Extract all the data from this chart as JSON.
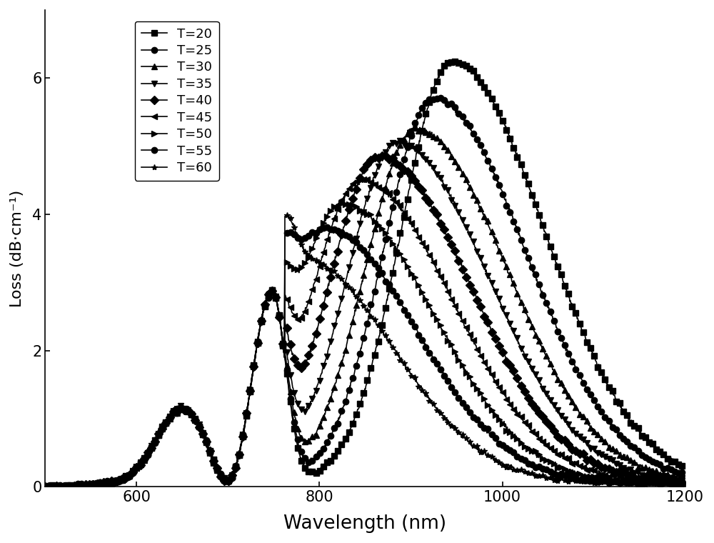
{
  "title": "",
  "xlabel": "Wavelength (nm)",
  "ylabel": "Loss (dB·cm⁻¹)",
  "xlim": [
    500,
    1200
  ],
  "ylim": [
    0,
    7
  ],
  "yticks": [
    0,
    2,
    4,
    6
  ],
  "xticks": [
    600,
    800,
    1000,
    1200
  ],
  "series": [
    {
      "label": "T=20",
      "marker": "s",
      "peak_wl": 945,
      "peak_val": 6.2
    },
    {
      "label": "T=25",
      "marker": "o",
      "peak_wl": 925,
      "peak_val": 5.65
    },
    {
      "label": "T=30",
      "marker": "^",
      "peak_wl": 905,
      "peak_val": 5.2
    },
    {
      "label": "T=35",
      "marker": "v",
      "peak_wl": 885,
      "peak_val": 5.0
    },
    {
      "label": "T=40",
      "marker": "D",
      "peak_wl": 865,
      "peak_val": 4.8
    },
    {
      "label": "T=45",
      "marker": "<",
      "peak_wl": 845,
      "peak_val": 4.45
    },
    {
      "label": "T=50",
      "marker": ">",
      "peak_wl": 825,
      "peak_val": 4.1
    },
    {
      "label": "T=55",
      "marker": "o",
      "peak_wl": 805,
      "peak_val": 3.75
    },
    {
      "label": "T=60",
      "marker": "*",
      "peak_wl": 780,
      "peak_val": 3.3
    }
  ],
  "shared_peak_wl": 740,
  "shared_peak_val": 2.8,
  "color": "#000000",
  "markersize": 6,
  "linewidth": 1.2,
  "markevery": 8,
  "background_color": "#ffffff"
}
